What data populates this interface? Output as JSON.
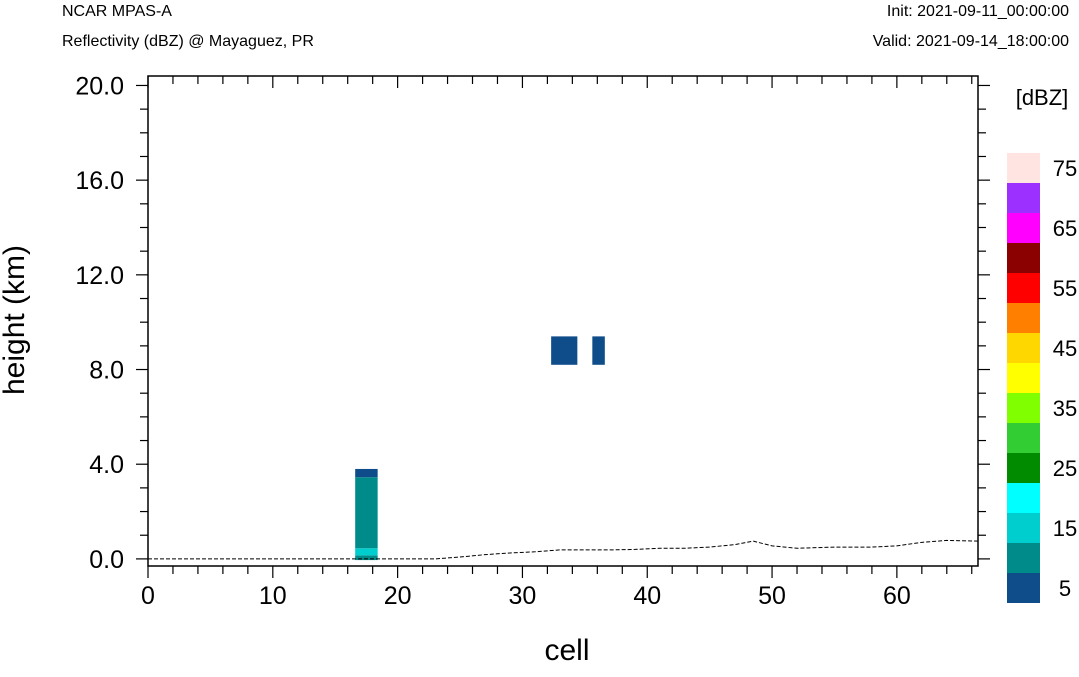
{
  "header": {
    "model": "NCAR MPAS-A",
    "field": "Reflectivity (dBZ) @ Mayaguez, PR",
    "init": "Init: 2021-09-11_00:00:00",
    "valid": "Valid: 2021-09-14_18:00:00"
  },
  "chart_data": {
    "type": "heatmap",
    "xlabel": "cell",
    "ylabel": "height (km)",
    "xlim": [
      0,
      66.5
    ],
    "ylim": [
      -0.3,
      20.4
    ],
    "x_ticks": [
      "0",
      "10",
      "20",
      "30",
      "40",
      "50",
      "60"
    ],
    "y_ticks": [
      "0.0",
      "4.0",
      "8.0",
      "12.0",
      "16.0",
      "20.0"
    ],
    "colorbar": {
      "title": "[dBZ]",
      "levels": [
        5,
        10,
        15,
        20,
        25,
        30,
        35,
        40,
        45,
        50,
        55,
        60,
        65,
        70,
        75,
        80
      ],
      "colors": [
        "#0f4c8a",
        "#008b8b",
        "#00cdcd",
        "#00ffff",
        "#008b00",
        "#32cd32",
        "#7fff00",
        "#ffff00",
        "#ffd700",
        "#ff8000",
        "#ff0000",
        "#8b0000",
        "#ff00ff",
        "#9b30ff",
        "#ffe4e1"
      ],
      "tick_labels": [
        "5",
        "15",
        "25",
        "35",
        "45",
        "55",
        "65",
        "75"
      ]
    },
    "cells": [
      {
        "x0": 16.6,
        "x1": 18.4,
        "z0": -0.05,
        "z1": 0.15,
        "dbz": 10
      },
      {
        "x0": 16.6,
        "x1": 18.4,
        "z0": 0.15,
        "z1": 0.45,
        "dbz": 15
      },
      {
        "x0": 16.6,
        "x1": 18.4,
        "z0": 0.45,
        "z1": 3.45,
        "dbz": 10
      },
      {
        "x0": 16.6,
        "x1": 18.4,
        "z0": 3.45,
        "z1": 3.8,
        "dbz": 5
      },
      {
        "x0": 32.3,
        "x1": 34.4,
        "z0": 8.2,
        "z1": 9.4,
        "dbz": 5
      },
      {
        "x0": 35.6,
        "x1": 36.6,
        "z0": 8.2,
        "z1": 9.4,
        "dbz": 5
      }
    ],
    "terrain": {
      "x": [
        0,
        5,
        10,
        15,
        20,
        23,
        25,
        27,
        29,
        31,
        33,
        35,
        37,
        39,
        41,
        43,
        45,
        47,
        48.5,
        50,
        52,
        55,
        58,
        60,
        62,
        64,
        66.5
      ],
      "z": [
        0.0,
        0.0,
        0.0,
        0.0,
        0.0,
        0.0,
        0.08,
        0.18,
        0.25,
        0.3,
        0.38,
        0.38,
        0.38,
        0.4,
        0.45,
        0.45,
        0.5,
        0.6,
        0.75,
        0.55,
        0.45,
        0.5,
        0.5,
        0.55,
        0.7,
        0.78,
        0.75
      ]
    }
  }
}
